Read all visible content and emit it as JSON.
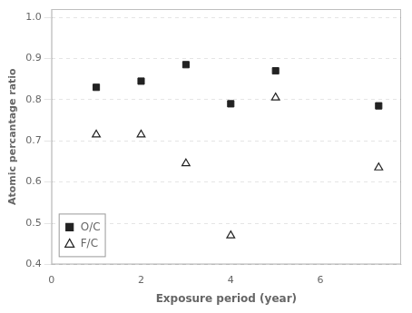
{
  "chart_data": {
    "type": "scatter",
    "xlabel": "Exposure period (year)",
    "ylabel": "Atomic percantage ratio",
    "xlim": [
      0,
      7.8
    ],
    "ylim": [
      0.4,
      1.02
    ],
    "xticks": [
      0,
      2,
      4,
      6
    ],
    "yticks": [
      0.4,
      0.5,
      0.6,
      0.7,
      0.8,
      0.9,
      {
        "value": 1.0,
        "label": "1.0"
      }
    ],
    "grid": "y",
    "legend": "lower left",
    "series": [
      {
        "name": "O/C",
        "color": "#222222",
        "marker": "square",
        "x": [
          1,
          2,
          3,
          4,
          5,
          7.3
        ],
        "values": [
          0.83,
          0.845,
          0.885,
          0.79,
          0.87,
          0.785
        ]
      },
      {
        "name": "F/C",
        "color": "#222222",
        "marker": "triangle-open",
        "x": [
          1,
          2,
          3,
          4,
          5,
          7.3
        ],
        "values": [
          0.715,
          0.715,
          0.645,
          0.47,
          0.805,
          0.635
        ]
      }
    ]
  }
}
